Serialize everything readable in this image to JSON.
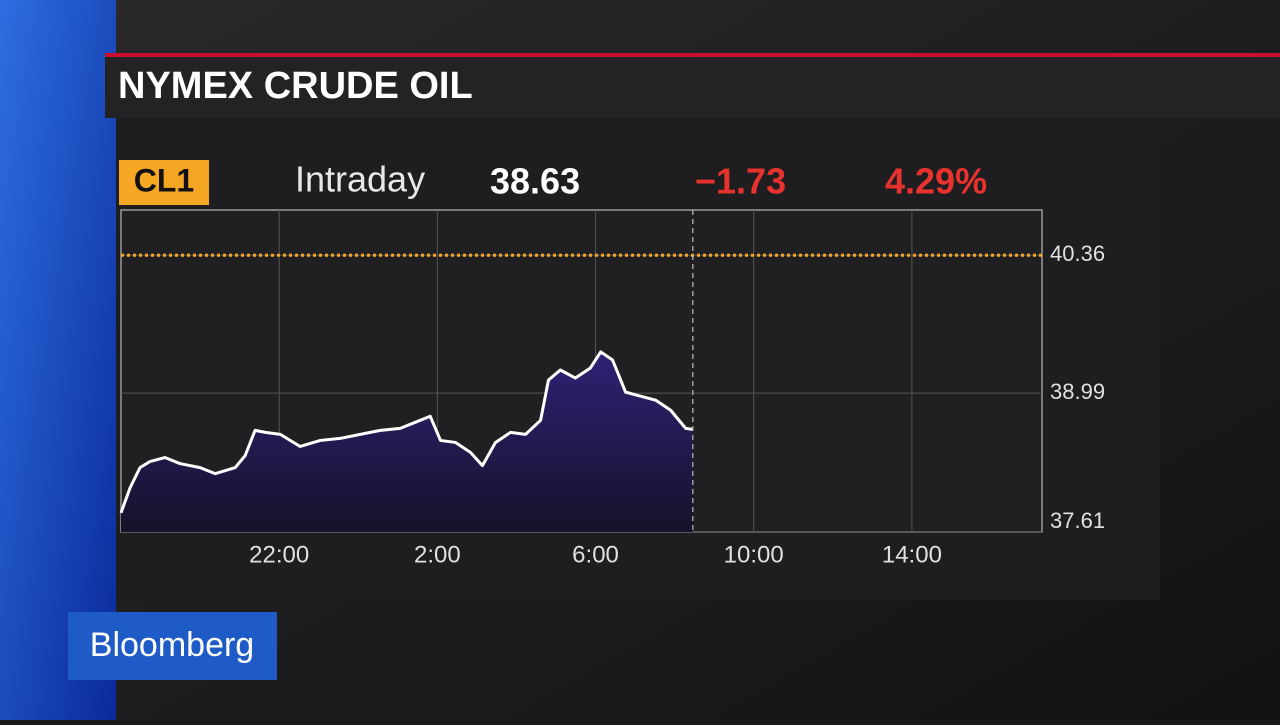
{
  "brand": "Bloomberg",
  "chart_data": {
    "type": "area",
    "title": "NYMEX CRUDE OIL",
    "ticker": "CL1",
    "subtitle": "Intraday",
    "last": "38.63",
    "change": "−1.73",
    "change_pct": "4.29%",
    "x": [
      18.0,
      18.23,
      18.48,
      18.73,
      19.11,
      19.49,
      20.0,
      20.38,
      20.89,
      21.14,
      21.39,
      21.65,
      22.03,
      22.53,
      23.04,
      23.54,
      24.05,
      24.56,
      25.06,
      25.44,
      25.82,
      26.08,
      26.46,
      26.84,
      27.14,
      27.47,
      27.85,
      28.23,
      28.61,
      28.81,
      29.11,
      29.49,
      29.87,
      30.13,
      30.43,
      30.76,
      31.14,
      31.52,
      31.9,
      32.28,
      32.46
    ],
    "series": [
      {
        "name": "CL1",
        "color": "#ffffff",
        "fill": "#2c2070",
        "values": [
          37.8,
          38.05,
          38.25,
          38.31,
          38.35,
          38.29,
          38.25,
          38.19,
          38.25,
          38.37,
          38.62,
          38.6,
          38.58,
          38.46,
          38.52,
          38.54,
          38.58,
          38.62,
          38.64,
          38.7,
          38.76,
          38.52,
          38.5,
          38.4,
          38.27,
          38.5,
          38.6,
          38.58,
          38.72,
          39.12,
          39.22,
          39.14,
          39.24,
          39.4,
          39.32,
          39.0,
          38.96,
          38.92,
          38.82,
          38.64,
          38.63
        ]
      }
    ],
    "xlim": [
      18,
      41.29
    ],
    "xticks": [
      {
        "value": 22,
        "label": "22:00"
      },
      {
        "value": 26,
        "label": "2:00"
      },
      {
        "value": 30,
        "label": "6:00"
      },
      {
        "value": 34,
        "label": "10:00"
      },
      {
        "value": 38,
        "label": "14:00"
      }
    ],
    "ylim": [
      37.61,
      40.81
    ],
    "yticks": [
      40.36,
      38.99,
      37.61
    ],
    "reference_line": {
      "value": 40.36,
      "color": "#f5a623"
    },
    "grid": true
  }
}
